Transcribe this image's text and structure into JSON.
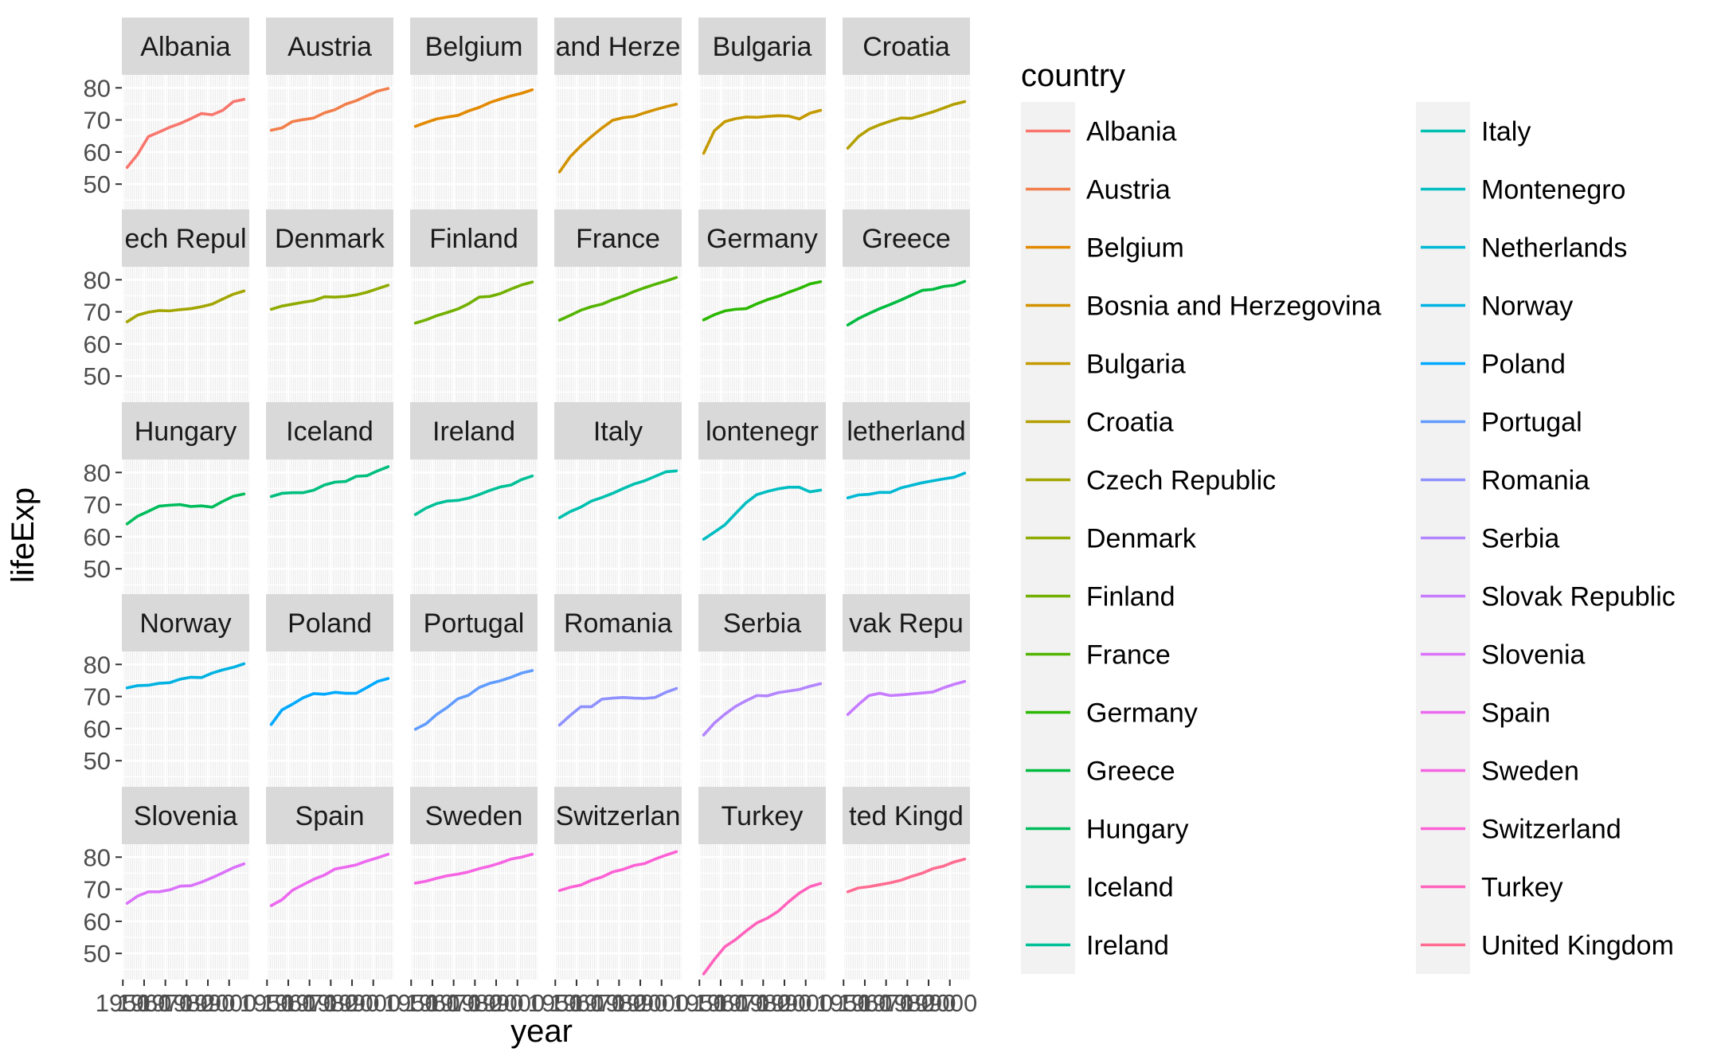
{
  "chart_data": {
    "type": "line",
    "layout": "facet_wrap",
    "xlabel": "year",
    "ylabel": "lifeExp",
    "x": [
      1952,
      1957,
      1962,
      1967,
      1972,
      1977,
      1982,
      1987,
      1992,
      1997,
      2002,
      2007
    ],
    "xlim": [
      1952,
      2007
    ],
    "x_ticks": [
      1950,
      1960,
      1970,
      1980,
      1990,
      2000
    ],
    "x_tick_labels": [
      "1950",
      "1960",
      "1970",
      "1980",
      "1990",
      "2000"
    ],
    "ylim": [
      43.6,
      82.3
    ],
    "y_ticks": [
      50,
      60,
      70,
      80
    ],
    "y_tick_labels": [
      "50",
      "60",
      "70",
      "80"
    ],
    "grid": true,
    "legend": {
      "title": "country",
      "placement": "right",
      "columns": 2
    },
    "series": [
      {
        "name": "Albania",
        "color": "#F8766D",
        "values": [
          55.2,
          59.3,
          64.8,
          66.2,
          67.7,
          68.9,
          70.4,
          72.0,
          71.6,
          73.0,
          75.7,
          76.4
        ]
      },
      {
        "name": "Austria",
        "color": "#F17E4B",
        "values": [
          66.8,
          67.5,
          69.5,
          70.1,
          70.6,
          72.2,
          73.2,
          74.9,
          76.0,
          77.5,
          79.0,
          79.8
        ]
      },
      {
        "name": "Belgium",
        "color": "#E38900",
        "values": [
          68.0,
          69.2,
          70.3,
          70.9,
          71.4,
          72.8,
          73.9,
          75.4,
          76.5,
          77.5,
          78.3,
          79.4
        ]
      },
      {
        "name": "Bosnia and Herzegovina",
        "color": "#D29200",
        "values": [
          53.8,
          58.5,
          61.9,
          64.8,
          67.5,
          69.9,
          70.7,
          71.1,
          72.2,
          73.2,
          74.1,
          74.9
        ]
      },
      {
        "name": "Bulgaria",
        "color": "#C49A00",
        "values": [
          59.6,
          66.6,
          69.5,
          70.4,
          70.9,
          70.8,
          71.1,
          71.3,
          71.2,
          70.3,
          72.1,
          73.0
        ]
      },
      {
        "name": "Croatia",
        "color": "#B3A000",
        "values": [
          61.2,
          64.8,
          67.1,
          68.5,
          69.6,
          70.6,
          70.5,
          71.5,
          72.5,
          73.7,
          74.9,
          75.7
        ]
      },
      {
        "name": "Czech Republic",
        "color": "#A3A500",
        "values": [
          66.9,
          69.0,
          69.9,
          70.4,
          70.3,
          70.7,
          71.0,
          71.6,
          72.4,
          74.0,
          75.5,
          76.5
        ]
      },
      {
        "name": "Denmark",
        "color": "#8EAB00",
        "values": [
          70.8,
          71.8,
          72.4,
          73.0,
          73.5,
          74.7,
          74.6,
          74.8,
          75.3,
          76.1,
          77.2,
          78.3
        ]
      },
      {
        "name": "Finland",
        "color": "#72B000",
        "values": [
          66.5,
          67.5,
          68.8,
          69.8,
          70.9,
          72.5,
          74.6,
          74.8,
          75.7,
          77.1,
          78.4,
          79.3
        ]
      },
      {
        "name": "France",
        "color": "#53B400",
        "values": [
          67.4,
          68.9,
          70.5,
          71.6,
          72.4,
          73.8,
          74.9,
          76.3,
          77.5,
          78.6,
          79.6,
          80.7
        ]
      },
      {
        "name": "Germany",
        "color": "#2BB800",
        "values": [
          67.5,
          69.1,
          70.3,
          70.8,
          71.0,
          72.5,
          73.8,
          74.8,
          76.1,
          77.3,
          78.7,
          79.4
        ]
      },
      {
        "name": "Greece",
        "color": "#00BB3F",
        "values": [
          65.9,
          67.9,
          69.5,
          71.0,
          72.3,
          73.7,
          75.2,
          76.7,
          77.0,
          77.9,
          78.3,
          79.5
        ]
      },
      {
        "name": "Hungary",
        "color": "#00BD5C",
        "values": [
          64.0,
          66.4,
          67.9,
          69.5,
          69.8,
          70.0,
          69.4,
          69.6,
          69.2,
          71.0,
          72.6,
          73.3
        ]
      },
      {
        "name": "Iceland",
        "color": "#00BF7D",
        "values": [
          72.5,
          73.5,
          73.7,
          73.7,
          74.5,
          76.1,
          77.0,
          77.2,
          78.8,
          79.0,
          80.5,
          81.8
        ]
      },
      {
        "name": "Ireland",
        "color": "#00C097",
        "values": [
          66.9,
          68.9,
          70.3,
          71.1,
          71.3,
          72.0,
          73.1,
          74.4,
          75.5,
          76.1,
          77.8,
          78.9
        ]
      },
      {
        "name": "Italy",
        "color": "#00C0AF",
        "values": [
          65.9,
          67.8,
          69.2,
          71.1,
          72.2,
          73.5,
          75.0,
          76.4,
          77.4,
          78.8,
          80.2,
          80.5
        ]
      },
      {
        "name": "Montenegro",
        "color": "#00BDC2",
        "values": [
          59.2,
          61.4,
          63.7,
          67.2,
          70.6,
          73.1,
          74.1,
          74.9,
          75.4,
          75.4,
          73.98,
          74.5
        ]
      },
      {
        "name": "Netherlands",
        "color": "#00B8D4",
        "values": [
          72.1,
          73.0,
          73.2,
          73.8,
          73.8,
          75.2,
          76.0,
          76.8,
          77.4,
          78.0,
          78.5,
          79.8
        ]
      },
      {
        "name": "Norway",
        "color": "#00B2E2",
        "values": [
          72.7,
          73.4,
          73.5,
          74.1,
          74.3,
          75.4,
          76.0,
          75.9,
          77.3,
          78.3,
          79.1,
          80.2
        ]
      },
      {
        "name": "Poland",
        "color": "#00A9FF",
        "values": [
          61.3,
          65.8,
          67.6,
          69.6,
          70.9,
          70.7,
          71.3,
          71.0,
          71.0,
          72.8,
          74.7,
          75.6
        ]
      },
      {
        "name": "Portugal",
        "color": "#619CFF",
        "values": [
          59.8,
          61.5,
          64.4,
          66.6,
          69.3,
          70.4,
          72.8,
          74.1,
          74.9,
          76.0,
          77.3,
          78.1
        ]
      },
      {
        "name": "Romania",
        "color": "#8F91FF",
        "values": [
          61.1,
          64.1,
          66.8,
          66.8,
          69.2,
          69.5,
          69.7,
          69.5,
          69.4,
          69.7,
          71.3,
          72.5
        ]
      },
      {
        "name": "Serbia",
        "color": "#B385FF",
        "values": [
          58.0,
          61.7,
          64.5,
          66.9,
          68.7,
          70.3,
          70.2,
          71.2,
          71.7,
          72.2,
          73.2,
          74.0
        ]
      },
      {
        "name": "Slovak Republic",
        "color": "#C77CFF",
        "values": [
          64.4,
          67.5,
          70.3,
          71.0,
          70.3,
          70.5,
          70.8,
          71.1,
          71.4,
          72.7,
          73.8,
          74.7
        ]
      },
      {
        "name": "Slovenia",
        "color": "#DB72FB",
        "values": [
          65.6,
          67.9,
          69.2,
          69.2,
          69.8,
          70.97,
          71.1,
          72.2,
          73.6,
          75.1,
          76.7,
          77.9
        ]
      },
      {
        "name": "Spain",
        "color": "#EC69EF",
        "values": [
          64.9,
          66.7,
          69.7,
          71.4,
          73.1,
          74.4,
          76.3,
          76.9,
          77.6,
          78.8,
          79.8,
          80.9
        ]
      },
      {
        "name": "Sweden",
        "color": "#F564E3",
        "values": [
          71.9,
          72.5,
          73.4,
          74.2,
          74.7,
          75.4,
          76.4,
          77.2,
          78.2,
          79.4,
          80.0,
          80.9
        ]
      },
      {
        "name": "Switzerland",
        "color": "#FC61D5",
        "values": [
          69.6,
          70.6,
          71.3,
          72.8,
          73.8,
          75.4,
          76.2,
          77.4,
          78.0,
          79.4,
          80.6,
          81.7
        ]
      },
      {
        "name": "Turkey",
        "color": "#FF62BC",
        "values": [
          43.6,
          48.1,
          52.1,
          54.3,
          57.0,
          59.5,
          61.0,
          63.1,
          66.1,
          68.8,
          70.8,
          71.8
        ]
      },
      {
        "name": "United Kingdom",
        "color": "#FF6C91",
        "values": [
          69.2,
          70.4,
          70.8,
          71.4,
          72.0,
          72.8,
          74.0,
          75.0,
          76.4,
          77.2,
          78.5,
          79.4
        ]
      }
    ],
    "facet_labels": [
      "Albania",
      "Austria",
      "Belgium",
      "and Herze",
      "Bulgaria",
      "Croatia",
      "ech Repul",
      "Denmark",
      "Finland",
      "France",
      "Germany",
      "Greece",
      "Hungary",
      "Iceland",
      "Ireland",
      "Italy",
      "lontenegr",
      "letherland",
      "Norway",
      "Poland",
      "Portugal",
      "Romania",
      "Serbia",
      "vak Repu",
      "Slovenia",
      "Spain",
      "Sweden",
      "Switzerlan",
      "Turkey",
      "ted Kingd"
    ]
  }
}
